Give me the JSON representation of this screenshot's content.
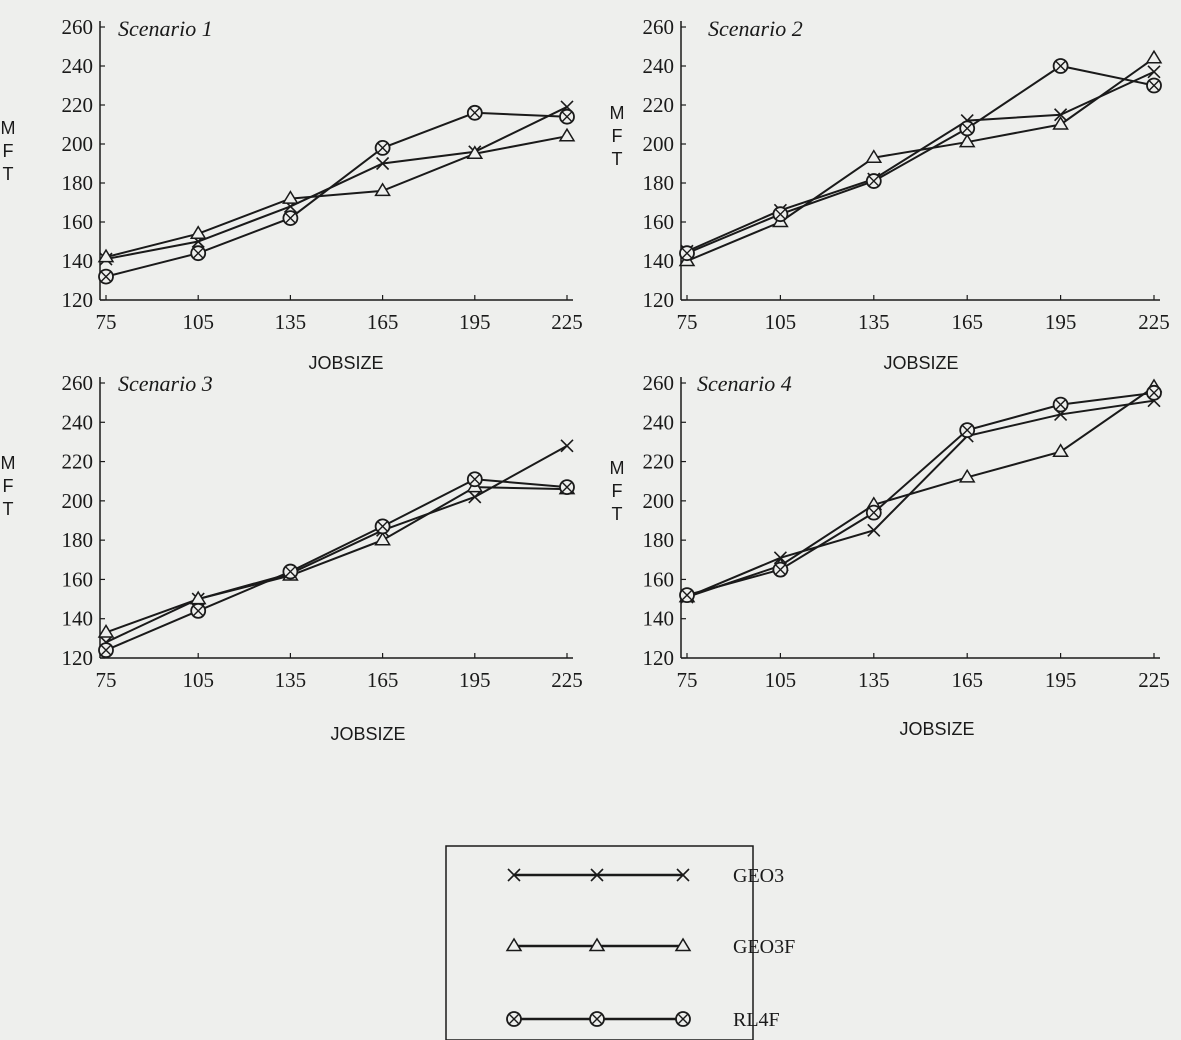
{
  "legend": {
    "items": [
      {
        "label": "GEO3",
        "marker": "x-mark"
      },
      {
        "label": "GEO3F",
        "marker": "triangle-mark"
      },
      {
        "label": "RL4F",
        "marker": "circle-x-mark"
      }
    ]
  },
  "colors": {
    "ink": "#1a1a1a",
    "background": "#eeefed"
  },
  "chart_data": [
    {
      "type": "line",
      "title": "Scenario 1",
      "xlabel": "JOBSIZE",
      "ylabel": "MFT",
      "x": [
        75,
        105,
        135,
        165,
        195,
        225
      ],
      "xticks": [
        "75",
        "105",
        "135",
        "165",
        "195",
        "225"
      ],
      "yticks": [
        "120",
        "140",
        "160",
        "180",
        "200",
        "220",
        "240",
        "260"
      ],
      "ylim": [
        120,
        260
      ],
      "grid": false,
      "series": [
        {
          "name": "GEO3",
          "marker": "x",
          "values": [
            141,
            150,
            168,
            190,
            196,
            219
          ]
        },
        {
          "name": "GEO3F",
          "marker": "triangle",
          "values": [
            142,
            154,
            172,
            176,
            195,
            204
          ]
        },
        {
          "name": "RL4F",
          "marker": "circle-x",
          "values": [
            132,
            144,
            162,
            198,
            216,
            214
          ]
        }
      ]
    },
    {
      "type": "line",
      "title": "Scenario 2",
      "xlabel": "JOBSIZE",
      "ylabel": "MFT",
      "x": [
        75,
        105,
        135,
        165,
        195,
        225
      ],
      "xticks": [
        "75",
        "105",
        "135",
        "165",
        "195",
        "225"
      ],
      "yticks": [
        "120",
        "140",
        "160",
        "180",
        "200",
        "220",
        "240",
        "260"
      ],
      "ylim": [
        120,
        260
      ],
      "grid": false,
      "series": [
        {
          "name": "GEO3",
          "marker": "x",
          "values": [
            145,
            166,
            182,
            212,
            215,
            237
          ]
        },
        {
          "name": "GEO3F",
          "marker": "triangle",
          "values": [
            140,
            160,
            193,
            201,
            210,
            244
          ]
        },
        {
          "name": "RL4F",
          "marker": "circle-x",
          "values": [
            144,
            164,
            181,
            208,
            240,
            230
          ]
        }
      ]
    },
    {
      "type": "line",
      "title": "Scenario 3",
      "xlabel": "JOBSIZE",
      "ylabel": "MFT",
      "x": [
        75,
        105,
        135,
        165,
        195,
        225
      ],
      "xticks": [
        "75",
        "105",
        "135",
        "165",
        "195",
        "225"
      ],
      "yticks": [
        "120",
        "140",
        "160",
        "180",
        "200",
        "220",
        "240",
        "260"
      ],
      "ylim": [
        120,
        260
      ],
      "grid": false,
      "series": [
        {
          "name": "GEO3",
          "marker": "x",
          "values": [
            128,
            150,
            163,
            185,
            202,
            228
          ]
        },
        {
          "name": "GEO3F",
          "marker": "triangle",
          "values": [
            133,
            150,
            162,
            180,
            207,
            206
          ]
        },
        {
          "name": "RL4F",
          "marker": "circle-x",
          "values": [
            124,
            144,
            164,
            187,
            211,
            207
          ]
        }
      ]
    },
    {
      "type": "line",
      "title": "Scenario 4",
      "xlabel": "JOBSIZE",
      "ylabel": "MFT",
      "x": [
        75,
        105,
        135,
        165,
        195,
        225
      ],
      "xticks": [
        "75",
        "105",
        "135",
        "165",
        "195",
        "225"
      ],
      "yticks": [
        "120",
        "140",
        "160",
        "180",
        "200",
        "220",
        "240",
        "260"
      ],
      "ylim": [
        120,
        260
      ],
      "grid": false,
      "series": [
        {
          "name": "GEO3",
          "marker": "x",
          "values": [
            151,
            171,
            185,
            233,
            244,
            251
          ]
        },
        {
          "name": "GEO3F",
          "marker": "triangle",
          "values": [
            151,
            167,
            198,
            212,
            225,
            258
          ]
        },
        {
          "name": "RL4F",
          "marker": "circle-x",
          "values": [
            152,
            165,
            194,
            236,
            249,
            255
          ]
        }
      ]
    }
  ]
}
